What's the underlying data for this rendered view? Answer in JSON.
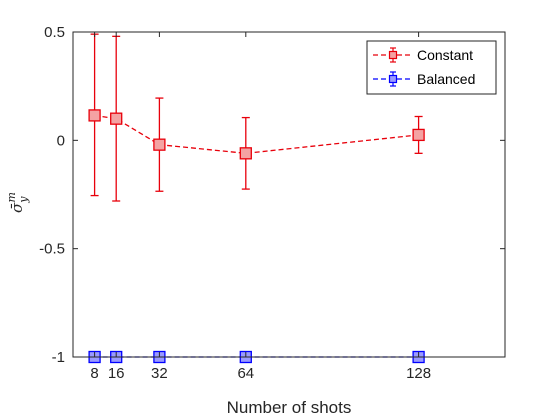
{
  "chart_data": {
    "type": "line",
    "xlabel": "Number of shots",
    "ylabel": "σ̄ y m",
    "xlim": [
      0,
      160
    ],
    "ylim": [
      -1,
      0.5
    ],
    "xticks": [
      8,
      16,
      32,
      64,
      128
    ],
    "xtick_labels": [
      "8",
      "16",
      "32",
      "64",
      "128"
    ],
    "yticks": [
      -1,
      -0.5,
      0,
      0.5
    ],
    "ytick_labels": [
      "-1",
      "-0.5",
      "0",
      "0.5"
    ],
    "legend_position": "top-right",
    "series": [
      {
        "name": "Constant",
        "color": "#e8000b",
        "marker_fill": "#f4a3a3",
        "marker": "square",
        "line_style": "dashed",
        "x": [
          8,
          16,
          32,
          64,
          128
        ],
        "y": [
          0.115,
          0.1,
          -0.02,
          -0.06,
          0.025
        ],
        "y_low": [
          -0.255,
          -0.28,
          -0.235,
          -0.225,
          -0.06
        ],
        "y_high": [
          0.49,
          0.48,
          0.195,
          0.105,
          0.11
        ]
      },
      {
        "name": "Balanced",
        "color": "#0000ff",
        "marker_fill": "#9a9aff",
        "marker": "square",
        "line_style": "dashed",
        "x": [
          8,
          16,
          32,
          64,
          128
        ],
        "y": [
          -1,
          -1,
          -1,
          -1,
          -1
        ],
        "y_low": [
          -1,
          -1,
          -1,
          -1,
          -1
        ],
        "y_high": [
          -1,
          -1,
          -1,
          -1,
          -1
        ]
      }
    ]
  }
}
